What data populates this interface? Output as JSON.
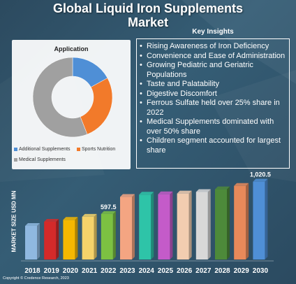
{
  "title_lines": [
    "Global Liquid Iron Supplements",
    "Market"
  ],
  "insights": {
    "heading": "Key Insights",
    "items": [
      "Rising Awareness of Iron Deficiency",
      "Convenience and Ease of Administration",
      "Growing Pediatric and Geriatric Populations",
      "Taste and Palatability",
      "Digestive Discomfort",
      "Ferrous Sulfate held over 25% share in 2022",
      "Medical Supplements dominated with over 50% share",
      "Children segment accounted for largest share"
    ]
  },
  "copyright": "Copyright © Credence Research, 2023",
  "colors": {
    "additional": "#4f8fd6",
    "sports": "#f27a2a",
    "medical": "#a0a0a0"
  },
  "chart_data": [
    {
      "type": "pie",
      "title": "Application",
      "labels": [
        "Additional Supplements",
        "Sports Nutrition",
        "Medical Supplements"
      ],
      "values": [
        17,
        27,
        56
      ],
      "hole": true
    },
    {
      "type": "bar",
      "ylabel": "MARKET SIZE USD MN",
      "categories": [
        "2018",
        "2019",
        "2020",
        "2021",
        "2022",
        "2023",
        "2024",
        "2025",
        "2026",
        "2027",
        "2028",
        "2029",
        "2030"
      ],
      "values": [
        440,
        495,
        520,
        560,
        597.5,
        820,
        850,
        855,
        865,
        885,
        920,
        965,
        1020.5
      ],
      "data_labels": {
        "4": "597.5",
        "12": "1,020.5"
      },
      "colors": [
        "#8fb8e0",
        "#d42a2a",
        "#f5b800",
        "#f5d36a",
        "#7cc142",
        "#f4a582",
        "#2ec4a8",
        "#c45bc9",
        "#f2cdb0",
        "#d8d8d8",
        "#4d8a3a",
        "#e8895a",
        "#4f8fd6"
      ]
    }
  ]
}
